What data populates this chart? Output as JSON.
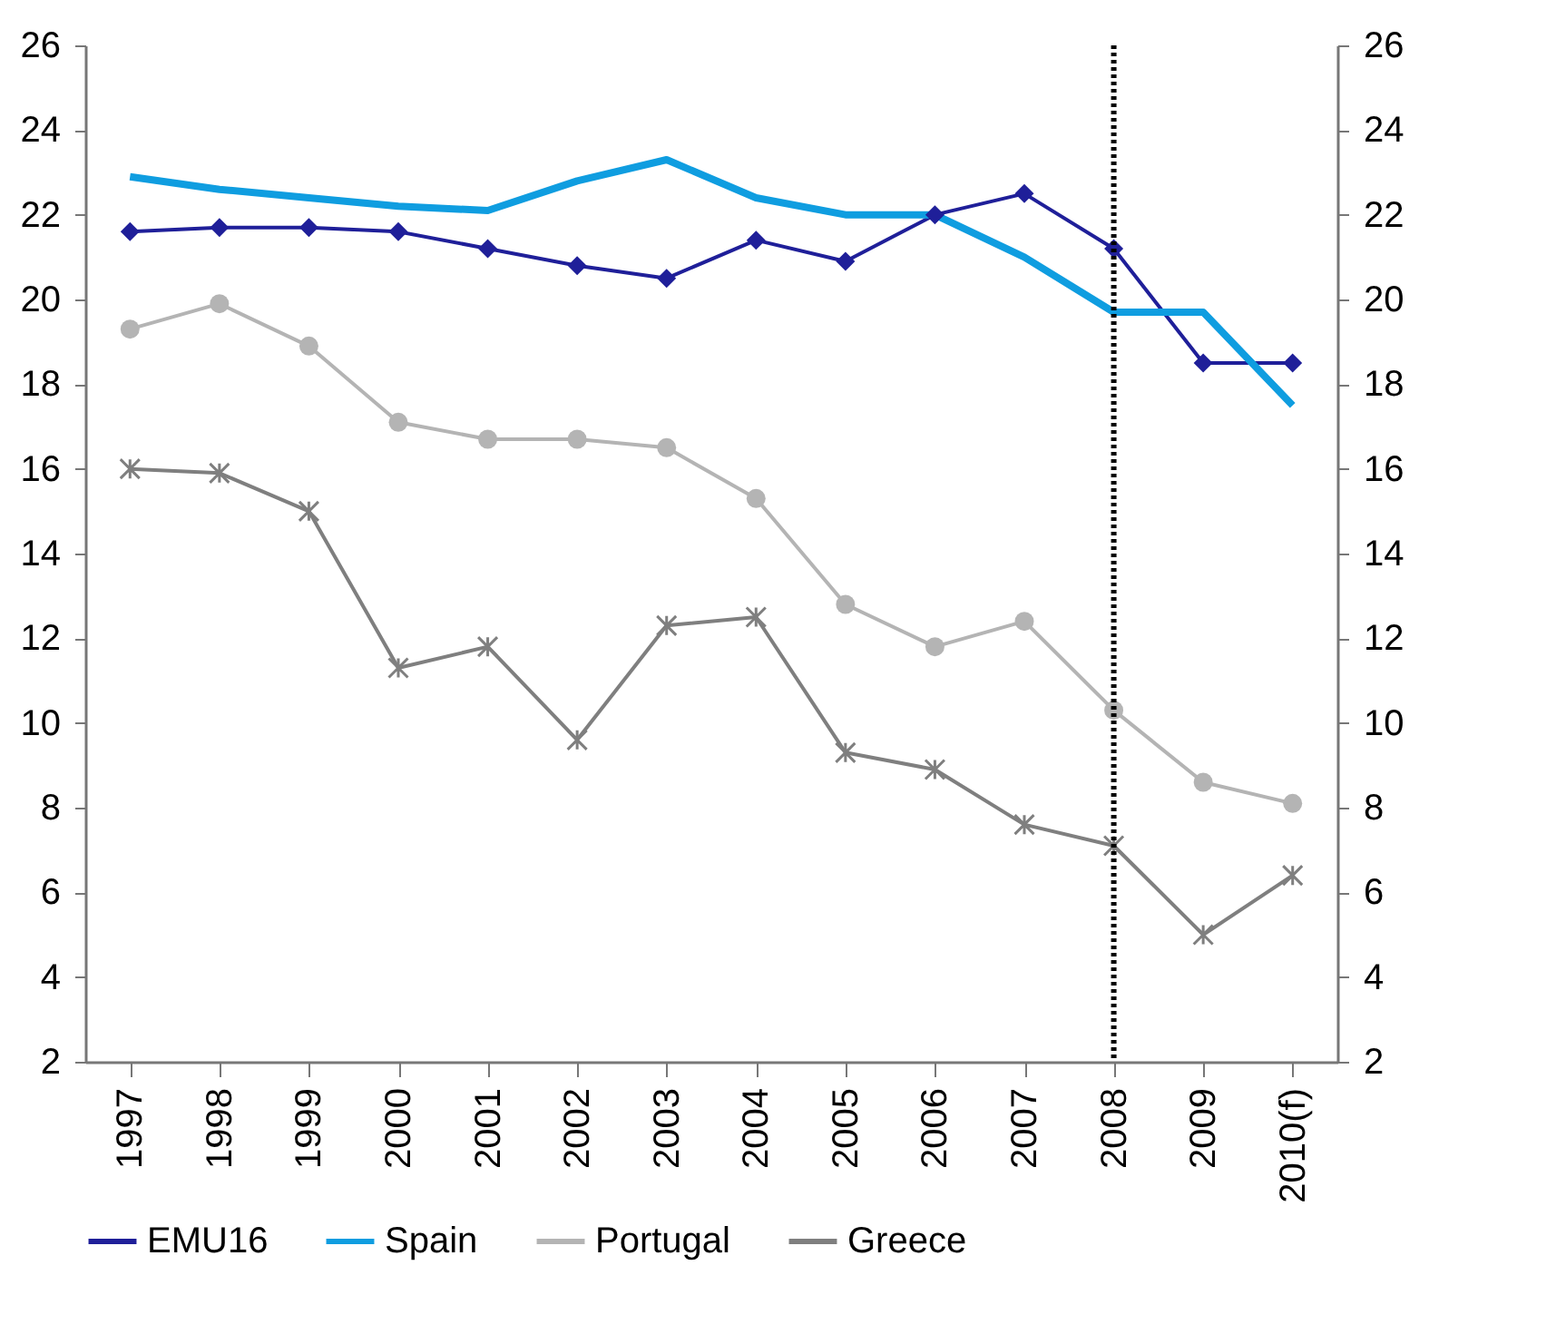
{
  "chart_data": {
    "type": "line",
    "categories": [
      "1997",
      "1998",
      "1999",
      "2000",
      "2001",
      "2002",
      "2003",
      "2004",
      "2005",
      "2006",
      "2007",
      "2008",
      "2009",
      "2010(f)"
    ],
    "series": [
      {
        "name": "EMU16",
        "color": "#1f1f99",
        "marker": "diamond",
        "values": [
          21.6,
          21.7,
          21.7,
          21.6,
          21.2,
          20.8,
          20.5,
          21.4,
          20.9,
          22.0,
          22.5,
          21.2,
          18.5,
          18.5
        ]
      },
      {
        "name": "Spain",
        "color": "#0f9de0",
        "marker": "none",
        "values": [
          22.9,
          22.6,
          22.4,
          22.2,
          22.1,
          22.8,
          23.3,
          22.4,
          22.0,
          22.0,
          21.0,
          19.7,
          19.7,
          17.5
        ]
      },
      {
        "name": "Portugal",
        "color": "#b4b4b4",
        "marker": "circle",
        "values": [
          19.3,
          19.9,
          18.9,
          17.1,
          16.7,
          16.7,
          16.5,
          15.3,
          12.8,
          11.8,
          12.4,
          10.3,
          8.6,
          8.1
        ]
      },
      {
        "name": "Greece",
        "color": "#7f7f7f",
        "marker": "cross",
        "values": [
          16.0,
          15.9,
          15.0,
          11.3,
          11.8,
          9.6,
          12.3,
          12.5,
          9.3,
          8.9,
          7.6,
          7.1,
          5.0,
          6.4
        ]
      }
    ],
    "ylim": [
      2,
      26
    ],
    "yticks": [
      2,
      4,
      6,
      8,
      10,
      12,
      14,
      16,
      18,
      20,
      22,
      24,
      26
    ],
    "y2lim": [
      2,
      26
    ],
    "y2ticks": [
      2,
      4,
      6,
      8,
      10,
      12,
      14,
      16,
      18,
      20,
      22,
      24,
      26
    ],
    "ref_lines": [
      {
        "axis": "x",
        "value": "2008",
        "color": "#000000",
        "line_style": "dotted"
      }
    ],
    "legend": "bottom",
    "grid": false
  }
}
